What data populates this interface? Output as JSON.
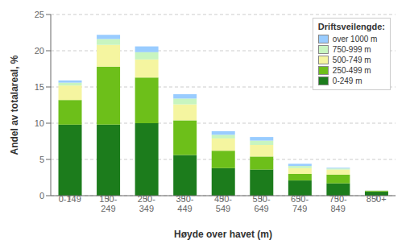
{
  "chart_data": {
    "type": "bar",
    "stacked": true,
    "categories": [
      "0-149",
      "150-\n249",
      "250-\n349",
      "350-\n449",
      "450-\n549",
      "550-\n649",
      "650-\n749",
      "750-\n849",
      "850+"
    ],
    "series": [
      {
        "name": "0-249 m",
        "color": "#1c7c1c",
        "values": [
          9.8,
          9.8,
          10.0,
          5.6,
          3.8,
          3.6,
          2.1,
          1.7,
          0.55
        ]
      },
      {
        "name": "250-499 m",
        "color": "#6dbf1a",
        "values": [
          3.4,
          8.0,
          6.3,
          4.8,
          2.4,
          1.8,
          0.9,
          1.2,
          0.1
        ]
      },
      {
        "name": "500-749 m",
        "color": "#f5f5a0",
        "values": [
          2.0,
          3.0,
          2.5,
          2.2,
          1.7,
          1.6,
          0.8,
          0.7,
          0.05
        ]
      },
      {
        "name": "750-999 m",
        "color": "#c8f5c0",
        "values": [
          0.4,
          0.8,
          1.0,
          0.8,
          0.5,
          0.6,
          0.3,
          0.15,
          0.03
        ]
      },
      {
        "name": "over 1000 m",
        "color": "#99ccff",
        "values": [
          0.3,
          0.6,
          0.8,
          0.6,
          0.5,
          0.5,
          0.3,
          0.1,
          0.02
        ]
      }
    ],
    "legend_title": "Driftsveilengde:",
    "legend": "upper right",
    "xlabel": "Høyde over havet (m)",
    "ylabel": "Andel av totalareal, %",
    "ylim": [
      0,
      25
    ],
    "yticks": [
      0,
      5,
      10,
      15,
      20,
      25
    ],
    "grid": true
  }
}
